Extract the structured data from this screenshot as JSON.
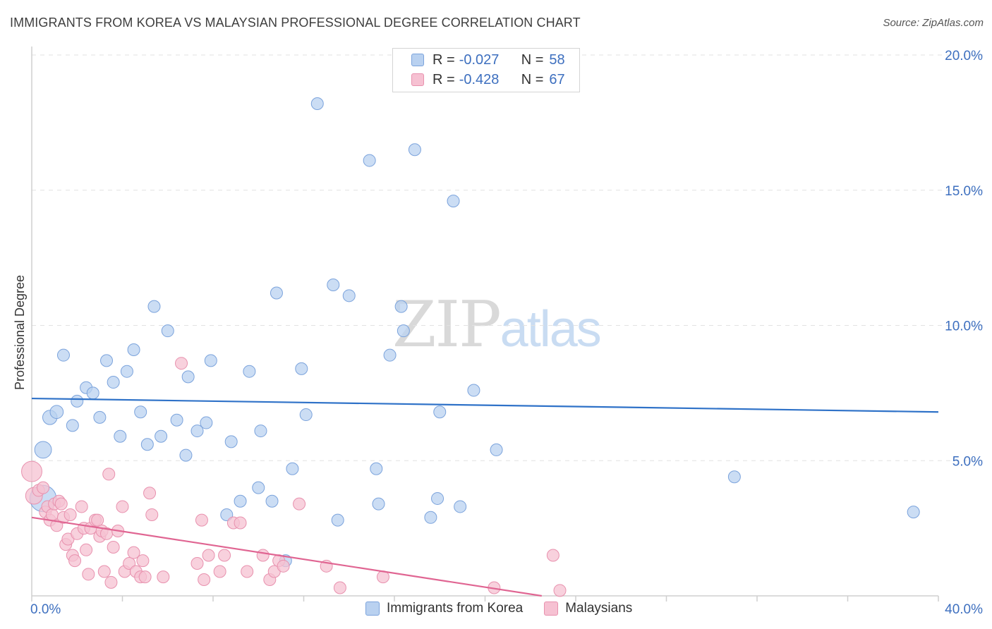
{
  "title": "IMMIGRANTS FROM KOREA VS MALAYSIAN PROFESSIONAL DEGREE CORRELATION CHART",
  "source": "Source: ZipAtlas.com",
  "watermark": {
    "zip": "ZIP",
    "atlas": "atlas"
  },
  "legend": {
    "rows": [
      {
        "r_label": "R =",
        "r_value": "-0.027",
        "n_label": "N =",
        "n_value": "58"
      },
      {
        "r_label": "R =",
        "r_value": "-0.428",
        "n_label": "N =",
        "n_value": "67"
      }
    ]
  },
  "bottom_legend": [
    "Immigrants from Korea",
    "Malaysians"
  ],
  "colors": {
    "korea_fill": "#b9d1f0",
    "korea_stroke": "#7ba3dc",
    "korea_line": "#2f72c8",
    "malay_fill": "#f6c1d2",
    "malay_stroke": "#e891ae",
    "malay_line": "#e06592",
    "grid": "#e2e2e2",
    "axis_text": "#3d6fbf"
  },
  "chart_data": {
    "type": "scatter",
    "title": "IMMIGRANTS FROM KOREA VS MALAYSIAN PROFESSIONAL DEGREE CORRELATION CHART",
    "xlabel": "",
    "ylabel": "Professional Degree",
    "xlim": [
      0,
      40
    ],
    "ylim": [
      0,
      20
    ],
    "x_tick_labels": [
      "0.0%",
      "40.0%"
    ],
    "y_ticks": [
      5,
      10,
      15,
      20
    ],
    "y_tick_labels": [
      "5.0%",
      "10.0%",
      "15.0%",
      "20.0%"
    ],
    "grid": true,
    "series": [
      {
        "name": "Immigrants from Korea",
        "r": -0.027,
        "n": 58,
        "trend": {
          "x": [
            0,
            40
          ],
          "y": [
            7.3,
            6.8
          ]
        },
        "points": [
          [
            0.5,
            3.6,
            2.2
          ],
          [
            0.5,
            5.4,
            1.4
          ],
          [
            0.8,
            6.6,
            1.2
          ],
          [
            1.1,
            6.8,
            1.1
          ],
          [
            1.4,
            8.9,
            1.0
          ],
          [
            1.8,
            6.3,
            1.0
          ],
          [
            2.0,
            7.2,
            1.0
          ],
          [
            2.4,
            7.7,
            1.0
          ],
          [
            2.7,
            7.5,
            1.0
          ],
          [
            3.0,
            6.6,
            1.0
          ],
          [
            3.3,
            8.7,
            1.0
          ],
          [
            3.6,
            7.9,
            1.0
          ],
          [
            3.9,
            5.9,
            1.0
          ],
          [
            4.2,
            8.3,
            1.0
          ],
          [
            4.5,
            9.1,
            1.0
          ],
          [
            4.8,
            6.8,
            1.0
          ],
          [
            5.1,
            5.6,
            1.0
          ],
          [
            5.4,
            10.7,
            1.0
          ],
          [
            5.7,
            5.9,
            1.0
          ],
          [
            6.0,
            9.8,
            1.0
          ],
          [
            6.4,
            6.5,
            1.0
          ],
          [
            6.8,
            5.2,
            1.0
          ],
          [
            6.9,
            8.1,
            1.0
          ],
          [
            7.3,
            6.1,
            1.0
          ],
          [
            7.7,
            6.4,
            1.0
          ],
          [
            7.9,
            8.7,
            1.0
          ],
          [
            8.6,
            3.0,
            1.0
          ],
          [
            8.8,
            5.7,
            1.0
          ],
          [
            9.2,
            3.5,
            1.0
          ],
          [
            9.6,
            8.3,
            1.0
          ],
          [
            10.0,
            4.0,
            1.0
          ],
          [
            10.1,
            6.1,
            1.0
          ],
          [
            10.6,
            3.5,
            1.0
          ],
          [
            10.8,
            11.2,
            1.0
          ],
          [
            11.2,
            1.3,
            1.0
          ],
          [
            11.5,
            4.7,
            1.0
          ],
          [
            11.9,
            8.4,
            1.0
          ],
          [
            12.1,
            6.7,
            1.0
          ],
          [
            12.6,
            18.2,
            1.0
          ],
          [
            13.3,
            11.5,
            1.0
          ],
          [
            13.5,
            2.8,
            1.0
          ],
          [
            14.0,
            11.1,
            1.0
          ],
          [
            14.9,
            16.1,
            1.0
          ],
          [
            15.2,
            4.7,
            1.0
          ],
          [
            15.3,
            3.4,
            1.0
          ],
          [
            15.8,
            8.9,
            1.0
          ],
          [
            16.3,
            10.7,
            1.0
          ],
          [
            16.4,
            9.8,
            1.0
          ],
          [
            16.9,
            16.5,
            1.0
          ],
          [
            17.6,
            2.9,
            1.0
          ],
          [
            17.9,
            3.6,
            1.0
          ],
          [
            18.0,
            6.8,
            1.0
          ],
          [
            18.6,
            14.6,
            1.0
          ],
          [
            18.9,
            3.3,
            1.0
          ],
          [
            19.5,
            7.6,
            1.0
          ],
          [
            20.5,
            5.4,
            1.0
          ],
          [
            31.0,
            4.4,
            1.0
          ],
          [
            38.9,
            3.1,
            1.0
          ]
        ]
      },
      {
        "name": "Malaysians",
        "r": -0.428,
        "n": 67,
        "trend": {
          "x": [
            0,
            22.5
          ],
          "y": [
            2.9,
            0.0
          ]
        },
        "points": [
          [
            0.0,
            4.6,
            1.7
          ],
          [
            0.1,
            3.7,
            1.4
          ],
          [
            0.3,
            3.9,
            1.0
          ],
          [
            0.5,
            4.0,
            1.0
          ],
          [
            0.6,
            3.1,
            1.0
          ],
          [
            0.7,
            3.3,
            1.0
          ],
          [
            0.8,
            2.8,
            1.0
          ],
          [
            0.9,
            3.0,
            1.0
          ],
          [
            1.0,
            3.4,
            1.0
          ],
          [
            1.1,
            2.6,
            1.0
          ],
          [
            1.2,
            3.5,
            1.0
          ],
          [
            1.3,
            3.4,
            1.0
          ],
          [
            1.4,
            2.9,
            1.0
          ],
          [
            1.5,
            1.9,
            1.0
          ],
          [
            1.6,
            2.1,
            1.0
          ],
          [
            1.7,
            3.0,
            1.0
          ],
          [
            1.8,
            1.5,
            1.0
          ],
          [
            1.9,
            1.3,
            1.0
          ],
          [
            2.0,
            2.3,
            1.0
          ],
          [
            2.2,
            3.3,
            1.0
          ],
          [
            2.3,
            2.5,
            1.0
          ],
          [
            2.4,
            1.7,
            1.0
          ],
          [
            2.5,
            0.8,
            1.0
          ],
          [
            2.6,
            2.5,
            1.0
          ],
          [
            2.8,
            2.8,
            1.0
          ],
          [
            2.9,
            2.8,
            1.0
          ],
          [
            3.0,
            2.2,
            1.0
          ],
          [
            3.1,
            2.4,
            1.0
          ],
          [
            3.2,
            0.9,
            1.0
          ],
          [
            3.3,
            2.3,
            1.0
          ],
          [
            3.4,
            4.5,
            1.0
          ],
          [
            3.5,
            0.5,
            1.0
          ],
          [
            3.6,
            1.8,
            1.0
          ],
          [
            3.8,
            2.4,
            1.0
          ],
          [
            4.0,
            3.3,
            1.0
          ],
          [
            4.1,
            0.9,
            1.0
          ],
          [
            4.3,
            1.2,
            1.0
          ],
          [
            4.5,
            1.6,
            1.0
          ],
          [
            4.6,
            0.9,
            1.0
          ],
          [
            4.8,
            0.7,
            1.0
          ],
          [
            4.9,
            1.3,
            1.0
          ],
          [
            5.0,
            0.7,
            1.0
          ],
          [
            5.2,
            3.8,
            1.0
          ],
          [
            5.3,
            3.0,
            1.0
          ],
          [
            5.8,
            0.7,
            1.0
          ],
          [
            6.6,
            8.6,
            1.0
          ],
          [
            7.3,
            1.2,
            1.0
          ],
          [
            7.5,
            2.8,
            1.0
          ],
          [
            7.6,
            0.6,
            1.0
          ],
          [
            7.8,
            1.5,
            1.0
          ],
          [
            8.3,
            0.9,
            1.0
          ],
          [
            8.5,
            1.5,
            1.0
          ],
          [
            8.9,
            2.7,
            1.0
          ],
          [
            9.2,
            2.7,
            1.0
          ],
          [
            9.5,
            0.9,
            1.0
          ],
          [
            10.2,
            1.5,
            1.0
          ],
          [
            10.5,
            0.6,
            1.0
          ],
          [
            10.7,
            0.9,
            1.0
          ],
          [
            10.9,
            1.3,
            1.0
          ],
          [
            11.1,
            1.1,
            1.0
          ],
          [
            11.8,
            3.4,
            1.0
          ],
          [
            13.0,
            1.1,
            1.0
          ],
          [
            13.6,
            0.3,
            1.0
          ],
          [
            15.5,
            0.7,
            1.0
          ],
          [
            20.4,
            0.3,
            1.0
          ],
          [
            23.0,
            1.5,
            1.0
          ],
          [
            23.3,
            0.2,
            1.0
          ]
        ]
      }
    ]
  }
}
